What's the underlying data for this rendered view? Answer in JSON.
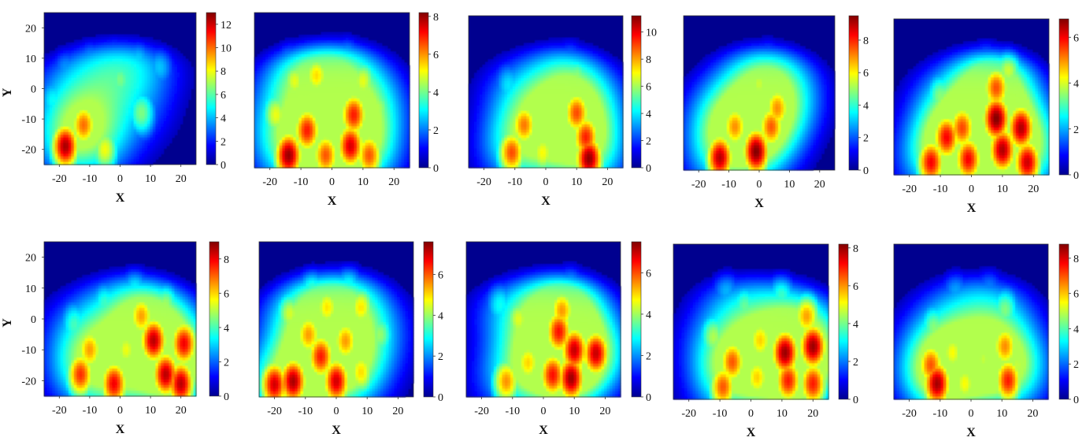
{
  "figure": {
    "colormap": "jet",
    "background_color": "#00008f",
    "xlabel": "X",
    "ylabel": "Y"
  },
  "chart_data": [
    {
      "type": "heatmap",
      "xlabel": "X",
      "ylabel": "Y",
      "xlim": [
        -25,
        25
      ],
      "ylim": [
        -25,
        25
      ],
      "xticks": [
        "-20",
        "-10",
        "0",
        "10",
        "20"
      ],
      "yticks": [
        "20",
        "10",
        "0",
        "-10",
        "-20"
      ],
      "colorbar": {
        "min": 0,
        "max": 13,
        "ticks": [
          "12",
          "10",
          "8",
          "6",
          "4",
          "2",
          "0"
        ]
      },
      "hotspots": [
        {
          "x": -18,
          "y": -19,
          "v": 12.5
        },
        {
          "x": -12,
          "y": -12,
          "v": 10
        },
        {
          "x": -5,
          "y": -20,
          "v": 8
        },
        {
          "x": -10,
          "y": -4,
          "v": 7
        },
        {
          "x": 0,
          "y": 3,
          "v": 6.5
        },
        {
          "x": 7,
          "y": -8,
          "v": 6.5
        },
        {
          "x": -18,
          "y": 8,
          "v": 4
        },
        {
          "x": -10,
          "y": 12,
          "v": 4.5
        },
        {
          "x": -2,
          "y": 14,
          "v": 4.5
        },
        {
          "x": 6,
          "y": 11,
          "v": 5
        },
        {
          "x": 13,
          "y": 8,
          "v": 4.5
        },
        {
          "x": -22,
          "y": -4,
          "v": 5
        }
      ]
    },
    {
      "type": "heatmap",
      "xlabel": "X",
      "xlim": [
        -25,
        25
      ],
      "ylim": [
        -25,
        25
      ],
      "xticks": [
        "-20",
        "-10",
        "0",
        "10",
        "20"
      ],
      "colorbar": {
        "min": 0,
        "max": 8.2,
        "ticks": [
          "8",
          "6",
          "4",
          "2",
          "0"
        ]
      },
      "hotspots": [
        {
          "x": -14,
          "y": -21,
          "v": 8
        },
        {
          "x": -8,
          "y": -13,
          "v": 7
        },
        {
          "x": -2,
          "y": -21,
          "v": 6.5
        },
        {
          "x": 6,
          "y": -18,
          "v": 7.5
        },
        {
          "x": 7,
          "y": -8,
          "v": 7
        },
        {
          "x": 12,
          "y": -21,
          "v": 6.5
        },
        {
          "x": -18,
          "y": -8,
          "v": 5
        },
        {
          "x": -12,
          "y": 3,
          "v": 5
        },
        {
          "x": -5,
          "y": 5,
          "v": 5.5
        },
        {
          "x": 0,
          "y": 10,
          "v": 4
        },
        {
          "x": 10,
          "y": 3,
          "v": 5
        },
        {
          "x": 15,
          "y": -6,
          "v": 4.5
        },
        {
          "x": -14,
          "y": 12,
          "v": 3
        },
        {
          "x": 5,
          "y": 14,
          "v": 3.5
        }
      ]
    },
    {
      "type": "heatmap",
      "xlabel": "X",
      "xlim": [
        -25,
        25
      ],
      "ylim": [
        -25,
        25
      ],
      "xticks": [
        "-20",
        "-10",
        "0",
        "10",
        "20"
      ],
      "colorbar": {
        "min": 0,
        "max": 11.2,
        "ticks": [
          "10",
          "8",
          "6",
          "4",
          "2",
          "0"
        ]
      },
      "hotspots": [
        {
          "x": -11,
          "y": -20,
          "v": 9
        },
        {
          "x": -7,
          "y": -11,
          "v": 8.5
        },
        {
          "x": -1,
          "y": -20,
          "v": 7
        },
        {
          "x": 10,
          "y": -7,
          "v": 9
        },
        {
          "x": 13,
          "y": -15,
          "v": 9.5
        },
        {
          "x": 14,
          "y": -22,
          "v": 11
        },
        {
          "x": 5,
          "y": -6,
          "v": 6
        },
        {
          "x": -4,
          "y": 0,
          "v": 5.5
        },
        {
          "x": 10,
          "y": 5,
          "v": 6
        },
        {
          "x": -12,
          "y": 2,
          "v": 4
        },
        {
          "x": 2,
          "y": 12,
          "v": 3.5
        },
        {
          "x": 8,
          "y": 15,
          "v": 4
        },
        {
          "x": 17,
          "y": -2,
          "v": 5
        }
      ]
    },
    {
      "type": "heatmap",
      "xlabel": "X",
      "xlim": [
        -25,
        25
      ],
      "ylim": [
        -25,
        25
      ],
      "xticks": [
        "-20",
        "-10",
        "0",
        "10",
        "20"
      ],
      "colorbar": {
        "min": 0,
        "max": 9.5,
        "ticks": [
          "8",
          "6",
          "4",
          "2",
          "0"
        ]
      },
      "hotspots": [
        {
          "x": -13,
          "y": -21,
          "v": 9
        },
        {
          "x": -1,
          "y": -19,
          "v": 9.5
        },
        {
          "x": -8,
          "y": -11,
          "v": 7
        },
        {
          "x": 4,
          "y": -11,
          "v": 7.5
        },
        {
          "x": 6,
          "y": -5,
          "v": 7
        },
        {
          "x": -15,
          "y": -8,
          "v": 5
        },
        {
          "x": -9,
          "y": -2,
          "v": 5
        },
        {
          "x": 0,
          "y": 3,
          "v": 5.5
        },
        {
          "x": 8,
          "y": 8,
          "v": 4
        },
        {
          "x": -5,
          "y": 12,
          "v": 3
        },
        {
          "x": 3,
          "y": 15,
          "v": 3.5
        },
        {
          "x": 12,
          "y": 0,
          "v": 4
        }
      ]
    },
    {
      "type": "heatmap",
      "xlabel": "X",
      "xlim": [
        -25,
        25
      ],
      "ylim": [
        -25,
        25
      ],
      "xticks": [
        "-20",
        "-10",
        "0",
        "10",
        "20"
      ],
      "colorbar": {
        "min": 0,
        "max": 6.8,
        "ticks": [
          "6",
          "4",
          "2",
          "0"
        ]
      },
      "hotspots": [
        {
          "x": -13,
          "y": -21,
          "v": 6
        },
        {
          "x": -8,
          "y": -13,
          "v": 6
        },
        {
          "x": -1,
          "y": -20,
          "v": 6
        },
        {
          "x": -3,
          "y": -10,
          "v": 5.5
        },
        {
          "x": 8,
          "y": -7,
          "v": 6.8
        },
        {
          "x": 10,
          "y": -17,
          "v": 6.5
        },
        {
          "x": 16,
          "y": -10,
          "v": 6.5
        },
        {
          "x": 18,
          "y": -21,
          "v": 6.3
        },
        {
          "x": 8,
          "y": 3,
          "v": 5.5
        },
        {
          "x": 12,
          "y": 10,
          "v": 4.5
        },
        {
          "x": -10,
          "y": 0,
          "v": 3.5
        },
        {
          "x": 0,
          "y": 5,
          "v": 3.5
        },
        {
          "x": 5,
          "y": 16,
          "v": 3
        }
      ]
    },
    {
      "type": "heatmap",
      "xlabel": "X",
      "ylabel": "Y",
      "xlim": [
        -25,
        25
      ],
      "ylim": [
        -25,
        25
      ],
      "xticks": [
        "-20",
        "-10",
        "0",
        "10",
        "20"
      ],
      "yticks": [
        "20",
        "10",
        "0",
        "-10",
        "-20"
      ],
      "colorbar": {
        "min": 0,
        "max": 9,
        "ticks": [
          "8",
          "6",
          "4",
          "2",
          "0"
        ]
      },
      "hotspots": [
        {
          "x": -13,
          "y": -18,
          "v": 7.5
        },
        {
          "x": -2,
          "y": -21,
          "v": 8
        },
        {
          "x": -10,
          "y": -10,
          "v": 6.5
        },
        {
          "x": 11,
          "y": -7,
          "v": 8.5
        },
        {
          "x": 15,
          "y": -18,
          "v": 8.5
        },
        {
          "x": 21,
          "y": -8,
          "v": 8
        },
        {
          "x": 20,
          "y": -21,
          "v": 8.5
        },
        {
          "x": 7,
          "y": 1,
          "v": 6.5
        },
        {
          "x": 2,
          "y": -10,
          "v": 5.5
        },
        {
          "x": -15,
          "y": -2,
          "v": 4
        },
        {
          "x": -5,
          "y": 5,
          "v": 4
        },
        {
          "x": 5,
          "y": 12,
          "v": 4
        },
        {
          "x": 15,
          "y": 5,
          "v": 5
        }
      ]
    },
    {
      "type": "heatmap",
      "xlabel": "X",
      "xlim": [
        -25,
        25
      ],
      "ylim": [
        -25,
        25
      ],
      "xticks": [
        "-20",
        "-10",
        "0",
        "10",
        "20"
      ],
      "colorbar": {
        "min": 0,
        "max": 7.6,
        "ticks": [
          "6",
          "4",
          "2",
          "0"
        ]
      },
      "hotspots": [
        {
          "x": -14,
          "y": -20,
          "v": 7.3
        },
        {
          "x": -20,
          "y": -21,
          "v": 7
        },
        {
          "x": -5,
          "y": -12,
          "v": 6.5
        },
        {
          "x": 0,
          "y": -20,
          "v": 7
        },
        {
          "x": -9,
          "y": -5,
          "v": 5.5
        },
        {
          "x": 3,
          "y": -7,
          "v": 5.5
        },
        {
          "x": 8,
          "y": -17,
          "v": 5
        },
        {
          "x": -15,
          "y": 2,
          "v": 4.5
        },
        {
          "x": -3,
          "y": 4,
          "v": 5
        },
        {
          "x": 8,
          "y": 4,
          "v": 5
        },
        {
          "x": -8,
          "y": 12,
          "v": 4
        },
        {
          "x": 4,
          "y": 14,
          "v": 4
        },
        {
          "x": 14,
          "y": -5,
          "v": 4
        }
      ]
    },
    {
      "type": "heatmap",
      "xlabel": "X",
      "xlim": [
        -25,
        25
      ],
      "ylim": [
        -25,
        25
      ],
      "xticks": [
        "-20",
        "-10",
        "0",
        "10",
        "20"
      ],
      "colorbar": {
        "min": 0,
        "max": 7.5,
        "ticks": [
          "6",
          "4",
          "2",
          "0"
        ]
      },
      "hotspots": [
        {
          "x": 9,
          "y": -19,
          "v": 7.3
        },
        {
          "x": 10,
          "y": -10,
          "v": 7
        },
        {
          "x": 5,
          "y": -4,
          "v": 6.5
        },
        {
          "x": 3,
          "y": -18,
          "v": 6.5
        },
        {
          "x": 17,
          "y": -11,
          "v": 7
        },
        {
          "x": -12,
          "y": -20,
          "v": 5.5
        },
        {
          "x": -5,
          "y": -14,
          "v": 5
        },
        {
          "x": 6,
          "y": 3,
          "v": 5.5
        },
        {
          "x": -8,
          "y": 0,
          "v": 4.5
        },
        {
          "x": 14,
          "y": 5,
          "v": 4
        },
        {
          "x": 0,
          "y": 10,
          "v": 3.5
        },
        {
          "x": -14,
          "y": 5,
          "v": 3
        },
        {
          "x": 9,
          "y": 15,
          "v": 3.5
        }
      ]
    },
    {
      "type": "heatmap",
      "xlabel": "X",
      "xlim": [
        -25,
        25
      ],
      "ylim": [
        -25,
        25
      ],
      "xticks": [
        "-20",
        "-10",
        "0",
        "10",
        "20"
      ],
      "colorbar": {
        "min": 0,
        "max": 8.2,
        "ticks": [
          "8",
          "6",
          "4",
          "2",
          "0"
        ]
      },
      "hotspots": [
        {
          "x": 11,
          "y": -10,
          "v": 8
        },
        {
          "x": 20,
          "y": -8,
          "v": 8
        },
        {
          "x": 12,
          "y": -19,
          "v": 7
        },
        {
          "x": 20,
          "y": -20,
          "v": 7
        },
        {
          "x": -9,
          "y": -21,
          "v": 6.5
        },
        {
          "x": -6,
          "y": -13,
          "v": 6.5
        },
        {
          "x": 2,
          "y": -18,
          "v": 5.5
        },
        {
          "x": 3,
          "y": -6,
          "v": 5.5
        },
        {
          "x": 18,
          "y": 2,
          "v": 6
        },
        {
          "x": -12,
          "y": -5,
          "v": 4.5
        },
        {
          "x": -2,
          "y": 5,
          "v": 4
        },
        {
          "x": 10,
          "y": 10,
          "v": 4
        },
        {
          "x": -8,
          "y": 12,
          "v": 3
        }
      ]
    },
    {
      "type": "heatmap",
      "xlabel": "X",
      "xlim": [
        -25,
        25
      ],
      "ylim": [
        -25,
        25
      ],
      "xticks": [
        "-20",
        "-10",
        "0",
        "10",
        "20"
      ],
      "colorbar": {
        "min": 0,
        "max": 8.8,
        "ticks": [
          "8",
          "6",
          "4",
          "2",
          "0"
        ]
      },
      "hotspots": [
        {
          "x": -11,
          "y": -20,
          "v": 8.5
        },
        {
          "x": -13,
          "y": -14,
          "v": 7
        },
        {
          "x": 12,
          "y": -19,
          "v": 7.5
        },
        {
          "x": 11,
          "y": -8,
          "v": 6.5
        },
        {
          "x": -2,
          "y": -20,
          "v": 5.5
        },
        {
          "x": -6,
          "y": -10,
          "v": 5.5
        },
        {
          "x": 4,
          "y": -12,
          "v": 5
        },
        {
          "x": 15,
          "y": -14,
          "v": 5
        },
        {
          "x": -12,
          "y": -2,
          "v": 4.5
        },
        {
          "x": 0,
          "y": 0,
          "v": 4
        },
        {
          "x": 11,
          "y": 4,
          "v": 4.5
        },
        {
          "x": -5,
          "y": 12,
          "v": 3
        },
        {
          "x": 6,
          "y": 14,
          "v": 3
        }
      ]
    }
  ]
}
